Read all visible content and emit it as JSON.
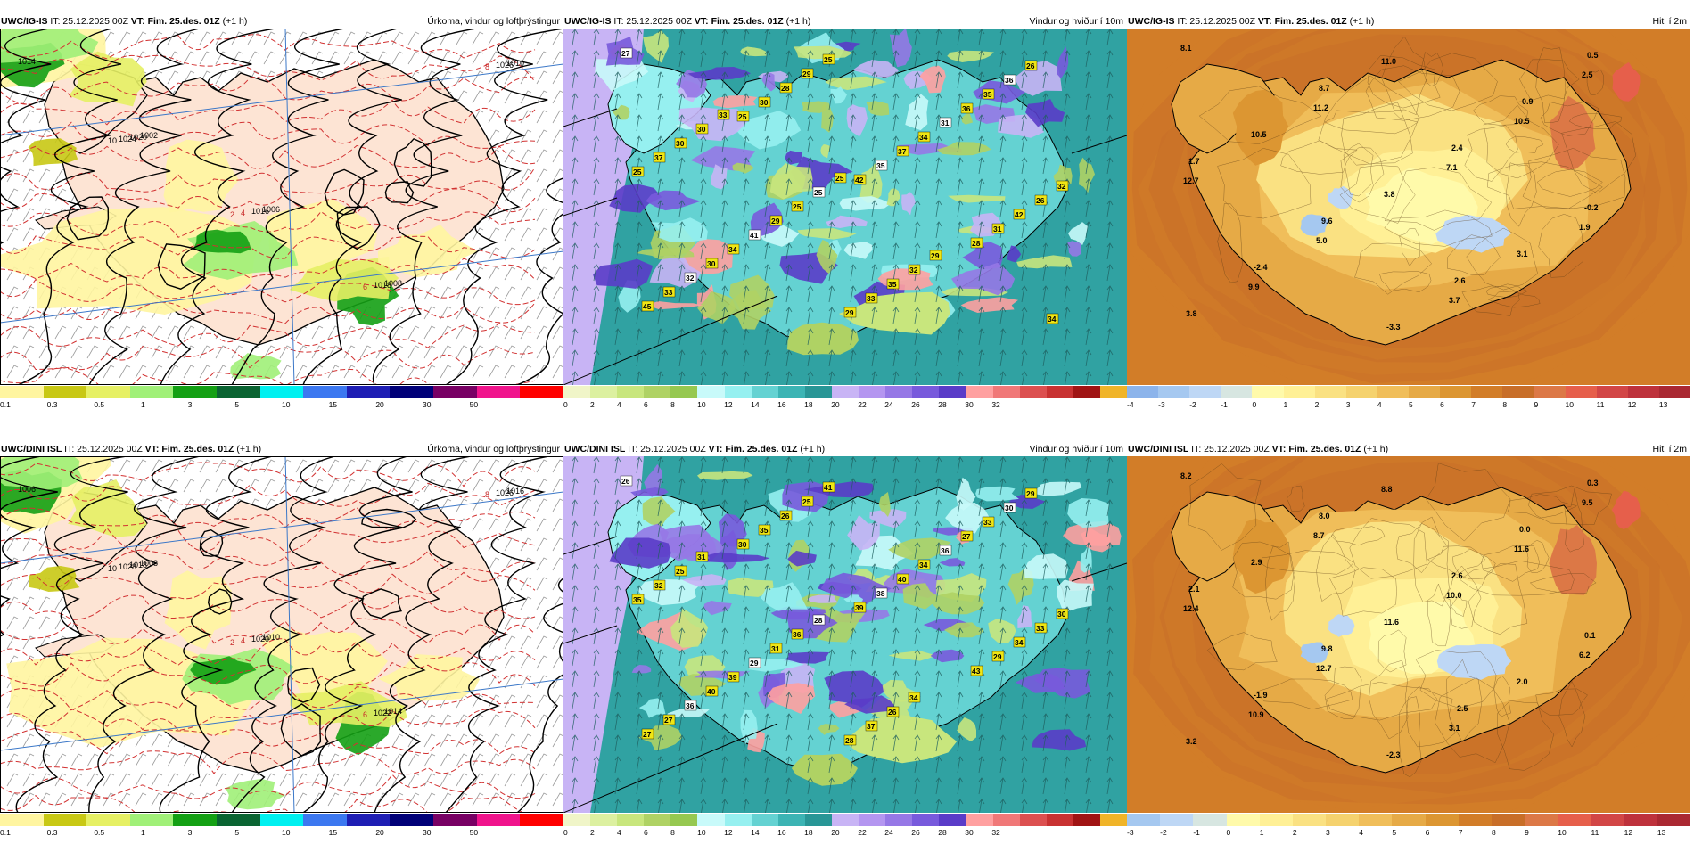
{
  "panels": [
    {
      "model": "UWC/IG-IS",
      "it": "IT: 25.12.2025 00Z",
      "vt_label": "VT:",
      "vt": "Fim. 25.des. 01Z",
      "lead": "(+1 h)",
      "field": "Úrkoma, vindur og loftþrýstingur",
      "kind": "precip"
    },
    {
      "model": "UWC/IG-IS",
      "it": "IT: 25.12.2025 00Z",
      "vt_label": "VT:",
      "vt": "Fim. 25.des. 01Z",
      "lead": "(+1 h)",
      "field": "Vindur og hviður í 10m",
      "kind": "wind"
    },
    {
      "model": "UWC/IG-IS",
      "it": "IT: 25.12.2025 00Z",
      "vt_label": "VT:",
      "vt": "Fim. 25.des. 01Z",
      "lead": "(+1 h)",
      "field": "Hiti í 2m",
      "kind": "temp"
    },
    {
      "model": "UWC/DINI ISL",
      "it": "IT: 25.12.2025 00Z",
      "vt_label": "VT:",
      "vt": "Fim. 25.des. 01Z",
      "lead": "(+1 h)",
      "field": "Úrkoma, vindur og loftþrýstingur",
      "kind": "precip"
    },
    {
      "model": "UWC/DINI ISL",
      "it": "IT: 25.12.2025 00Z",
      "vt_label": "VT:",
      "vt": "Fim. 25.des. 01Z",
      "lead": "(+1 h)",
      "field": "Vindur og hviður í 10m",
      "kind": "wind"
    },
    {
      "model": "UWC/DINI ISL",
      "it": "IT: 25.12.2025 00Z",
      "vt_label": "VT:",
      "vt": "Fim. 25.des. 01Z",
      "lead": "(+1 h)",
      "field": "Hiti í 2m",
      "kind": "temp2"
    }
  ],
  "colorbars": {
    "precip": {
      "colors": [
        "#fff5a0",
        "#c8c814",
        "#e6f064",
        "#a0f078",
        "#14a014",
        "#0a6432",
        "#00f0f0",
        "#3c78f0",
        "#1e1eb4",
        "#000078",
        "#780064",
        "#f0148c",
        "#ff0000"
      ],
      "ticks": [
        "0.1",
        "0.3",
        "0.5",
        "1",
        "3",
        "5",
        "10",
        "15",
        "20",
        "30",
        "50"
      ]
    },
    "wind": {
      "colors": [
        "#f0f5c8",
        "#dcf0a0",
        "#c8e67d",
        "#afd264",
        "#96c850",
        "#c8fafa",
        "#96f0f0",
        "#64d2d2",
        "#3cb4b4",
        "#289696",
        "#c8b4f5",
        "#b496f0",
        "#9678e6",
        "#785adc",
        "#5a3cc8",
        "#ffa0a0",
        "#f07878",
        "#dc5050",
        "#c83232",
        "#a01414",
        "#f0b428"
      ],
      "ticks": [
        "0",
        "2",
        "4",
        "6",
        "8",
        "10",
        "12",
        "14",
        "16",
        "18",
        "20",
        "22",
        "24",
        "26",
        "28",
        "30",
        "32"
      ]
    },
    "temp": {
      "colors": [
        "#8cb4eb",
        "#a5c8f0",
        "#bed7f5",
        "#d7e6e1",
        "#fffaaa",
        "#fff096",
        "#fae182",
        "#f5d26e",
        "#f0be5a",
        "#e6aa46",
        "#dc9632",
        "#d27d28",
        "#c86e28",
        "#dc7846",
        "#e65f4b",
        "#d24646",
        "#be323c",
        "#aa2832"
      ],
      "ticks": [
        "-4",
        "-3",
        "-2",
        "-1",
        "0",
        "1",
        "2",
        "3",
        "4",
        "5",
        "6",
        "7",
        "8",
        "9",
        "10",
        "11",
        "12",
        "13"
      ]
    },
    "temp2": {
      "colors": [
        "#a5c8f0",
        "#bed7f5",
        "#d7e6e1",
        "#fffaaa",
        "#fff096",
        "#fae182",
        "#f5d26e",
        "#f0be5a",
        "#e6aa46",
        "#dc9632",
        "#d27d28",
        "#c86e28",
        "#dc7846",
        "#e65f4b",
        "#d24646",
        "#be323c",
        "#aa2832"
      ],
      "ticks": [
        "-3",
        "-2",
        "-1",
        "0",
        "1",
        "2",
        "3",
        "4",
        "5",
        "6",
        "7",
        "8",
        "9",
        "10",
        "11",
        "12",
        "13"
      ]
    }
  },
  "labels": {
    "precip_top": [
      "1014",
      "1002",
      "1006",
      "1008",
      "1010",
      "1020",
      "1016",
      "1018",
      "1026",
      "1024",
      "4",
      "6",
      "8",
      "10",
      "2"
    ],
    "precip_bot": [
      "1006",
      "1008",
      "1010",
      "1014",
      "1016",
      "1018",
      "1020",
      "1022",
      "1026",
      "1028",
      "4",
      "6",
      "8",
      "10",
      "2"
    ],
    "wind_top": [
      "27",
      "25",
      "42",
      "28",
      "45",
      "30",
      "35",
      "31",
      "33",
      "28",
      "37",
      "42",
      "32",
      "29",
      "34",
      "26",
      "30",
      "25",
      "31",
      "32",
      "34",
      "29",
      "36",
      "25",
      "41",
      "33",
      "35",
      "37",
      "29",
      "35",
      "36",
      "30",
      "25",
      "32",
      "26",
      "30",
      "25",
      "29",
      "34",
      "33",
      "25"
    ],
    "wind_bot": [
      "26",
      "30",
      "39",
      "43",
      "27",
      "35",
      "38",
      "29",
      "27",
      "26",
      "40",
      "34",
      "36",
      "25",
      "34",
      "33",
      "40",
      "41",
      "36",
      "30",
      "39",
      "28",
      "27",
      "35",
      "29",
      "37",
      "33",
      "32",
      "31",
      "26",
      "30",
      "25",
      "36",
      "34",
      "29",
      "31",
      "28"
    ],
    "temp_top": [
      "8.1",
      "11.2",
      "7.1",
      "1.9",
      "9.9",
      "11.0",
      "10.5",
      "12.7",
      "5.0",
      "3.7",
      "2.5",
      "10.5",
      "3.8",
      "3.1",
      "3.8",
      "8.7",
      "2.4",
      "-0.2",
      "-2.4",
      "-3.3",
      "-0.9",
      "1.7",
      "9.6",
      "2.6",
      "0.5"
    ],
    "temp_bot": [
      "8.2",
      "8.7",
      "10.0",
      "6.2",
      "10.9",
      "8.8",
      "11.6",
      "12.4",
      "12.7",
      "3.1",
      "9.5",
      "2.9",
      "11.6",
      "2.0",
      "3.2",
      "8.0",
      "2.6",
      "0.1",
      "-1.9",
      "-2.3",
      "0.0",
      "2.1",
      "9.8",
      "-2.5",
      "0.3"
    ]
  }
}
